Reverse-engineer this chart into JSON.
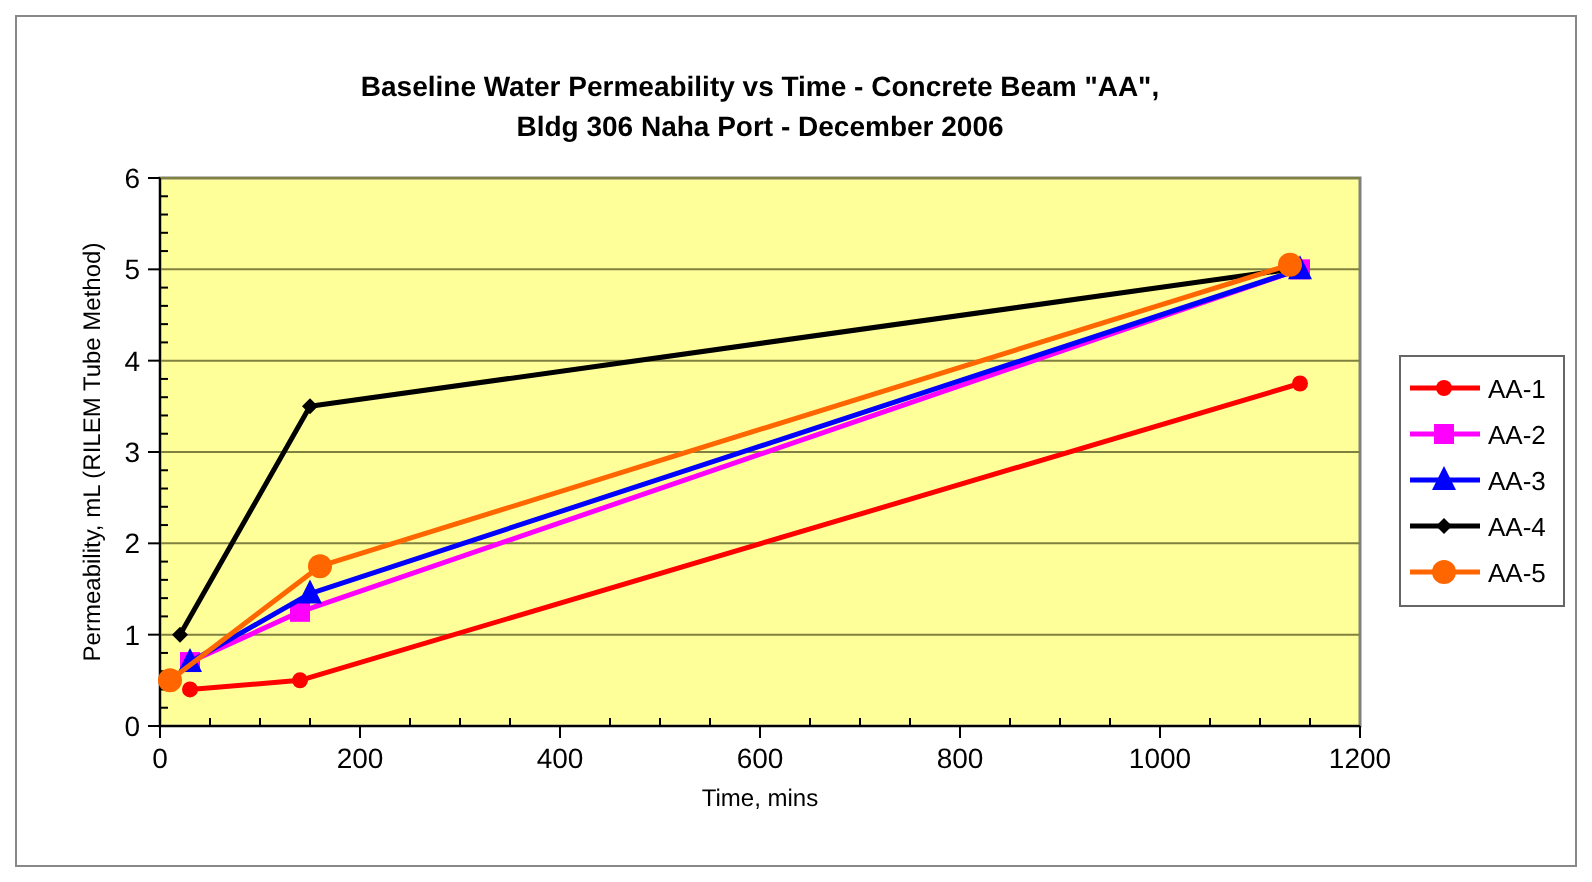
{
  "chart_data": {
    "type": "line",
    "title": "Baseline Water Permeability vs Time - Concrete Beam \"AA\",\nBldg 306 Naha Port - December 2006",
    "xlabel": "Time, mins",
    "ylabel": "Permeability, mL (RILEM Tube Method)",
    "xlim": [
      0,
      1200
    ],
    "xticks": [
      0,
      200,
      400,
      600,
      800,
      1000,
      1200
    ],
    "ylim": [
      0,
      6
    ],
    "yticks": [
      0,
      1,
      2,
      3,
      4,
      5,
      6
    ],
    "grid": "y",
    "legend": "right",
    "series": [
      {
        "name": "AA-1",
        "color": "#ff0000",
        "marker": "circle",
        "x": [
          30,
          140,
          1140
        ],
        "values": [
          0.4,
          0.5,
          3.75
        ]
      },
      {
        "name": "AA-2",
        "color": "#ff00ff",
        "marker": "square",
        "x": [
          30,
          140,
          1140
        ],
        "values": [
          0.7,
          1.25,
          5.0
        ]
      },
      {
        "name": "AA-3",
        "color": "#0000ff",
        "marker": "triangle",
        "x": [
          30,
          150,
          1140
        ],
        "values": [
          0.7,
          1.45,
          5.0
        ]
      },
      {
        "name": "AA-4",
        "color": "#000000",
        "marker": "diamond",
        "x": [
          20,
          150,
          1130
        ],
        "values": [
          1.0,
          3.5,
          5.0
        ]
      },
      {
        "name": "AA-5",
        "color": "#ff6600",
        "marker": "circle",
        "x": [
          10,
          160,
          1130
        ],
        "values": [
          0.5,
          1.75,
          5.05
        ]
      }
    ]
  }
}
